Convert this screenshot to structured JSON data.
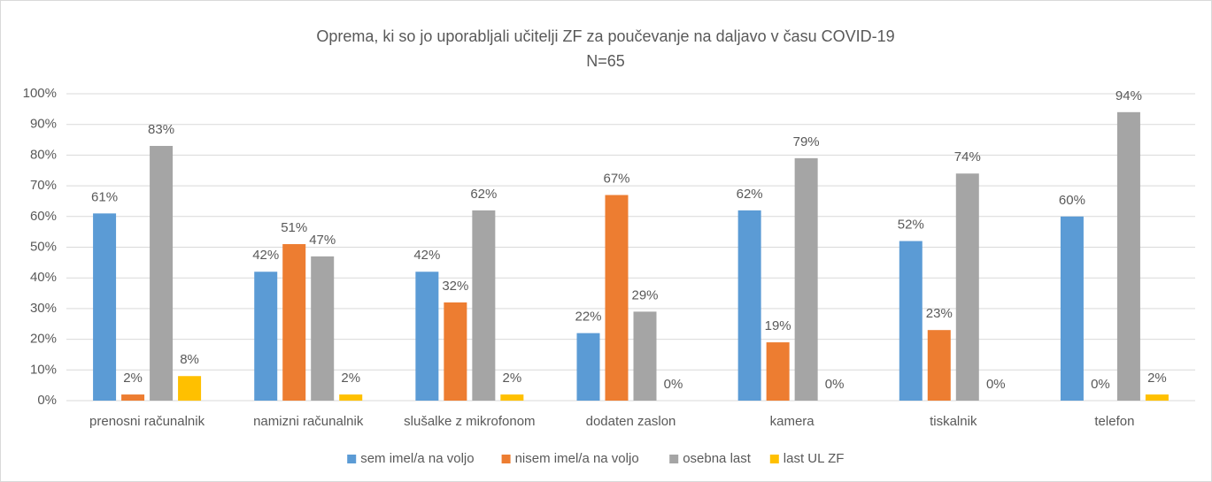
{
  "chart_data": {
    "type": "bar",
    "title": "Oprema, ki so jo uporabljali učitelji ZF za poučevanje na daljavo v času COVID-19",
    "subtitle": "N=65",
    "categories": [
      "prenosni računalnik",
      "namizni računalnik",
      "slušalke z mikrofonom",
      "dodaten zaslon",
      "kamera",
      "tiskalnik",
      "telefon"
    ],
    "series": [
      {
        "name": "sem imel/a na voljo",
        "color": "#5b9bd5",
        "values": [
          61,
          42,
          42,
          22,
          62,
          52,
          60
        ],
        "value_labels": [
          "61%",
          "42%",
          "42%",
          "22%",
          "62%",
          "52%",
          "60%"
        ]
      },
      {
        "name": "nisem imel/a na voljo",
        "color": "#ed7d31",
        "values": [
          2,
          51,
          32,
          67,
          19,
          23,
          0
        ],
        "value_labels": [
          "2%",
          "51%",
          "32%",
          "67%",
          "19%",
          "23%",
          "0%"
        ]
      },
      {
        "name": "osebna last",
        "color": "#a5a5a5",
        "values": [
          83,
          47,
          62,
          29,
          79,
          74,
          94
        ],
        "value_labels": [
          "83%",
          "47%",
          "62%",
          "29%",
          "79%",
          "74%",
          "94%"
        ]
      },
      {
        "name": "last UL ZF",
        "color": "#ffc000",
        "values": [
          8,
          2,
          2,
          0,
          0,
          0,
          2
        ],
        "value_labels": [
          "8%",
          "2%",
          "2%",
          "0%",
          "0%",
          "0%",
          "2%"
        ]
      }
    ],
    "ylim": [
      0,
      100
    ],
    "yticks": [
      {
        "value": 0,
        "label": "0%"
      },
      {
        "value": 10,
        "label": "10%"
      },
      {
        "value": 20,
        "label": "20%"
      },
      {
        "value": 30,
        "label": "30%"
      },
      {
        "value": 40,
        "label": "40%"
      },
      {
        "value": 50,
        "label": "50%"
      },
      {
        "value": 60,
        "label": "60%"
      },
      {
        "value": 70,
        "label": "70%"
      },
      {
        "value": 80,
        "label": "80%"
      },
      {
        "value": 90,
        "label": "90%"
      },
      {
        "value": 100,
        "label": "100%"
      }
    ],
    "grid": true,
    "legend": "bottom"
  }
}
